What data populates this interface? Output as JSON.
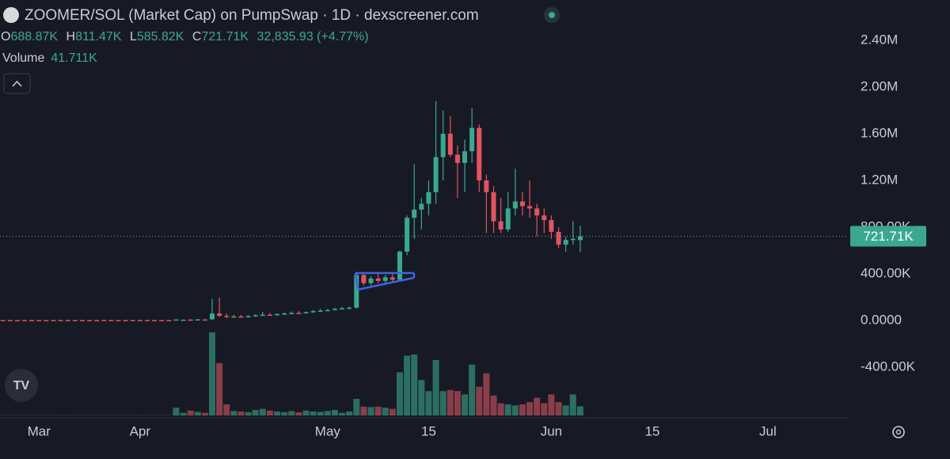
{
  "chart_data": {
    "type": "candlestick",
    "title": "ZOOMER/SOL (Market Cap) on PumpSwap · 1D · dexscreener.com",
    "header": {
      "open_key": "O",
      "open": "688.87K",
      "high_key": "H",
      "high": "811.47K",
      "low_key": "L",
      "low": "585.82K",
      "close_key": "C",
      "close": "721.71K",
      "change": "32,835.93 (+4.77%)",
      "volume_label": "Volume",
      "volume": "41.711K"
    },
    "x": [
      -45,
      -44,
      -43,
      -42,
      -41,
      -40,
      -39,
      -38,
      -37,
      -36,
      -35,
      -34,
      -33,
      -32,
      -31,
      -30,
      -29,
      -28,
      -27,
      -26,
      -25,
      -24,
      -23,
      -22,
      -21,
      -20,
      -19,
      -18,
      -17,
      -16,
      -15,
      -14,
      -13,
      -12,
      -11,
      -10,
      -9,
      -8,
      -7,
      -6,
      -5,
      -4,
      -3,
      -2,
      -1,
      0,
      1,
      2,
      3,
      4,
      5,
      6,
      7,
      8,
      9,
      10,
      11,
      12,
      13,
      14,
      15,
      16,
      17,
      18,
      19,
      20,
      21,
      22,
      23,
      24,
      25,
      26,
      27,
      28,
      29,
      30,
      31,
      32,
      33,
      34,
      35
    ],
    "open": [
      4000,
      4200,
      3900,
      4100,
      4000,
      3800,
      4000,
      4100,
      3900,
      4000,
      4200,
      4000,
      3900,
      4100,
      4000,
      4200,
      3800,
      4000,
      4100,
      3900,
      4000,
      4100,
      3800,
      4000,
      6000,
      5000,
      8000,
      7000,
      9000,
      10000,
      60000,
      40000,
      30000,
      35000,
      32000,
      38000,
      45000,
      50000,
      48000,
      55000,
      60000,
      65000,
      62000,
      72000,
      80000,
      85000,
      90000,
      100000,
      105000,
      110000,
      390000,
      320000,
      360000,
      340000,
      370000,
      350000,
      590000,
      880000,
      950000,
      1000000,
      1100000,
      1400000,
      1600000,
      1420000,
      1350000,
      1450000,
      1650000,
      1200000,
      1100000,
      850000,
      780000,
      960000,
      1020000,
      980000,
      960000,
      900000,
      860000,
      760000,
      650000,
      690000,
      688870
    ],
    "high": [
      4500,
      4700,
      4400,
      4600,
      4500,
      4300,
      4500,
      4600,
      4400,
      4500,
      4700,
      4500,
      4400,
      4600,
      4500,
      4700,
      4300,
      4500,
      4600,
      4400,
      4500,
      4600,
      4300,
      4500,
      11000,
      9000,
      10000,
      12000,
      11000,
      185000,
      195000,
      60000,
      50000,
      48000,
      45000,
      55000,
      75000,
      65000,
      62000,
      70000,
      78000,
      80000,
      75000,
      90000,
      100000,
      98000,
      110000,
      115000,
      120000,
      400000,
      410000,
      380000,
      400000,
      390000,
      400000,
      600000,
      900000,
      1340000,
      1050000,
      1200000,
      1880000,
      1800000,
      1750000,
      1500000,
      1550000,
      1820000,
      1680000,
      1250000,
      1150000,
      1050000,
      1100000,
      1300000,
      1100000,
      1200000,
      1000000,
      960000,
      900000,
      800000,
      720000,
      850000,
      811470
    ],
    "low": [
      3000,
      3300,
      3000,
      3200,
      3100,
      2900,
      3100,
      3200,
      3000,
      3100,
      3300,
      3100,
      3000,
      3200,
      3100,
      3300,
      2900,
      3100,
      3200,
      3000,
      3100,
      3200,
      2900,
      3100,
      5000,
      4500,
      5000,
      6000,
      7000,
      5000,
      30000,
      20000,
      25000,
      28000,
      26000,
      32000,
      40000,
      42000,
      42000,
      50000,
      54000,
      56000,
      58000,
      66000,
      74000,
      80000,
      85000,
      94000,
      100000,
      100000,
      300000,
      300000,
      320000,
      310000,
      330000,
      340000,
      560000,
      700000,
      780000,
      900000,
      1000000,
      1200000,
      1400000,
      1050000,
      1100000,
      1350000,
      1100000,
      750000,
      750000,
      750000,
      760000,
      900000,
      900000,
      880000,
      720000,
      750000,
      700000,
      620000,
      590000,
      650000,
      585820
    ],
    "close": [
      3500,
      3800,
      3500,
      3700,
      3600,
      3400,
      3600,
      3700,
      3500,
      3600,
      3800,
      3600,
      3500,
      3700,
      3600,
      3800,
      3400,
      3600,
      3700,
      3500,
      3600,
      3700,
      3400,
      3600,
      9000,
      7000,
      6000,
      10000,
      8000,
      60000,
      40000,
      30000,
      35000,
      32000,
      38000,
      45000,
      50000,
      48000,
      55000,
      60000,
      65000,
      62000,
      72000,
      80000,
      85000,
      90000,
      100000,
      105000,
      110000,
      390000,
      320000,
      360000,
      340000,
      370000,
      350000,
      590000,
      880000,
      950000,
      1000000,
      1100000,
      1400000,
      1600000,
      1420000,
      1350000,
      1450000,
      1650000,
      1200000,
      1100000,
      850000,
      780000,
      960000,
      1020000,
      980000,
      960000,
      900000,
      860000,
      760000,
      650000,
      690000,
      700000,
      721710
    ],
    "volume": [
      1000,
      1000,
      1000,
      1000,
      1000,
      1000,
      1000,
      1000,
      1000,
      1000,
      1000,
      1000,
      1000,
      1000,
      1000,
      1000,
      1000,
      1000,
      1000,
      1000,
      1000,
      1000,
      1000,
      1000,
      35000,
      12000,
      22000,
      16000,
      12000,
      375000,
      236000,
      50000,
      20000,
      18000,
      15000,
      25000,
      30000,
      22000,
      18000,
      15000,
      20000,
      14000,
      22000,
      18000,
      16000,
      20000,
      25000,
      12000,
      18000,
      75000,
      40000,
      38000,
      40000,
      35000,
      30000,
      195000,
      270000,
      275000,
      160000,
      110000,
      250000,
      110000,
      115000,
      110000,
      95000,
      230000,
      130000,
      190000,
      90000,
      55000,
      50000,
      45000,
      50000,
      60000,
      80000,
      55000,
      95000,
      60000,
      45000,
      95000,
      41711
    ],
    "up_color": "#3aa88f",
    "down_color": "#e2545f",
    "volume_up_color": "#2c6e62",
    "volume_down_color": "#8a3d4a",
    "xlim": [
      -45.4,
      72.2
    ],
    "xticks": [
      {
        "value": -40,
        "label": "Mar"
      },
      {
        "value": -26,
        "label": "Apr"
      },
      {
        "value": 0,
        "label": "May"
      },
      {
        "value": 14,
        "label": "15"
      },
      {
        "value": 31,
        "label": "Jun"
      },
      {
        "value": 45,
        "label": "15"
      },
      {
        "value": 61,
        "label": "Jul"
      }
    ],
    "ylim": [
      -813600,
      2745800
    ],
    "yticks": [
      {
        "value": -400000,
        "label": "-400.00K"
      },
      {
        "value": 0,
        "label": "0.0000"
      },
      {
        "value": 400000,
        "label": "400.00K"
      },
      {
        "value": 800000,
        "label": "800.00K"
      },
      {
        "value": 1200000,
        "label": "1.20M"
      },
      {
        "value": 1600000,
        "label": "1.60M"
      },
      {
        "value": 2000000,
        "label": "2.00M"
      },
      {
        "value": 2400000,
        "label": "2.40M"
      }
    ],
    "grid": false
  }
}
